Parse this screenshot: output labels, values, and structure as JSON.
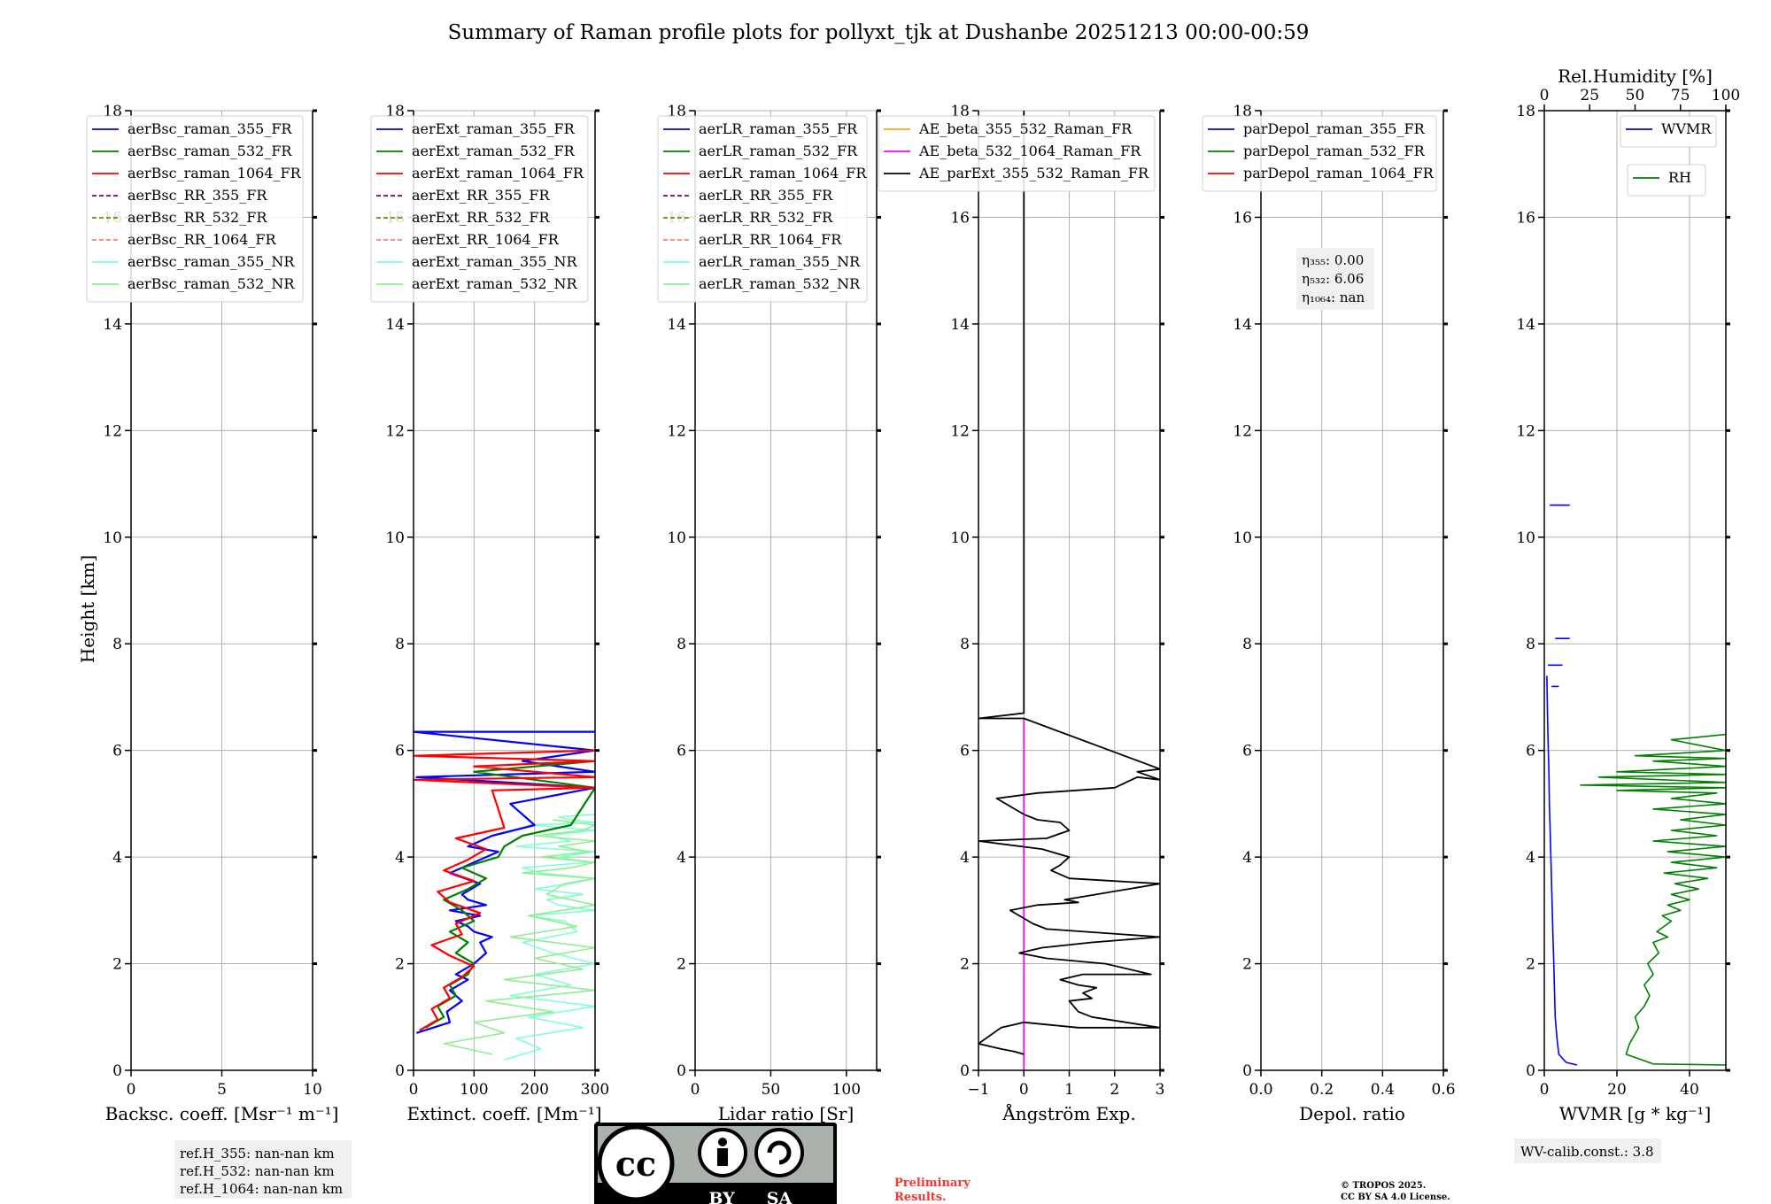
{
  "title": "Summary of Raman profile plots for pollyxt_tjk at Dushanbe 20251213 00:00-00:59",
  "ylabel": "Height [km]",
  "ylim": [
    0,
    18
  ],
  "yticks": [
    "0",
    "2",
    "4",
    "6",
    "8",
    "10",
    "12",
    "14",
    "16",
    "18"
  ],
  "chart_data": [
    {
      "type": "line",
      "id": "bsc",
      "xlabel": "Backsc. coeff. [Msr⁻¹ m⁻¹]",
      "xlim": [
        0,
        10
      ],
      "xticks": [
        0,
        5,
        10
      ],
      "xtick_labels": [
        "0",
        "5",
        "10"
      ],
      "legend": [
        {
          "name": "aerBsc_raman_355_FR",
          "color": "#0000ff",
          "dash": false
        },
        {
          "name": "aerBsc_raman_532_FR",
          "color": "#008000",
          "dash": false
        },
        {
          "name": "aerBsc_raman_1064_FR",
          "color": "#ff0000",
          "dash": false
        },
        {
          "name": "aerBsc_RR_355_FR",
          "color": "#800080",
          "dash": true
        },
        {
          "name": "aerBsc_RR_532_FR",
          "color": "#808000",
          "dash": true
        },
        {
          "name": "aerBsc_RR_1064_FR",
          "color": "#fa8072",
          "dash": true
        },
        {
          "name": "aerBsc_raman_355_NR",
          "color": "#7fffd4",
          "dash": false
        },
        {
          "name": "aerBsc_raman_532_NR",
          "color": "#90ee90",
          "dash": false
        }
      ],
      "series": []
    },
    {
      "type": "line",
      "id": "ext",
      "xlabel": "Extinct. coeff. [Mm⁻¹]",
      "xlim": [
        0,
        300
      ],
      "xticks": [
        0,
        100,
        200,
        300
      ],
      "xtick_labels": [
        "0",
        "100",
        "200",
        "300"
      ],
      "legend": [
        {
          "name": "aerExt_raman_355_FR",
          "color": "#0000ff",
          "dash": false
        },
        {
          "name": "aerExt_raman_532_FR",
          "color": "#008000",
          "dash": false
        },
        {
          "name": "aerExt_raman_1064_FR",
          "color": "#ff0000",
          "dash": false
        },
        {
          "name": "aerExt_RR_355_FR",
          "color": "#800080",
          "dash": true
        },
        {
          "name": "aerExt_RR_532_FR",
          "color": "#808000",
          "dash": true
        },
        {
          "name": "aerExt_RR_1064_FR",
          "color": "#fa8072",
          "dash": true
        },
        {
          "name": "aerExt_raman_355_NR",
          "color": "#7fffd4",
          "dash": false
        },
        {
          "name": "aerExt_raman_532_NR",
          "color": "#90ee90",
          "dash": false
        }
      ],
      "series": [
        {
          "name": "aerExt_raman_355_NR",
          "color": "#7fffd4",
          "width": 1.6,
          "x": [
            150,
            210,
            170,
            280,
            190,
            300,
            160,
            260,
            200,
            300,
            230,
            180,
            270,
            250,
            190,
            300,
            240,
            220,
            280,
            200,
            260,
            300,
            210,
            180,
            290,
            240,
            300,
            170,
            260,
            220,
            300,
            250,
            190,
            300,
            260,
            240,
            300
          ],
          "y": [
            0.2,
            0.4,
            0.6,
            0.8,
            1.0,
            1.2,
            1.4,
            1.6,
            1.8,
            2.0,
            2.2,
            2.4,
            2.6,
            2.8,
            2.9,
            3.0,
            3.1,
            3.2,
            3.3,
            3.4,
            3.5,
            3.6,
            3.7,
            3.8,
            3.9,
            4.0,
            4.1,
            4.2,
            4.3,
            4.4,
            4.5,
            4.55,
            4.6,
            4.65,
            4.7,
            4.75,
            4.8
          ]
        },
        {
          "name": "aerExt_raman_532_NR",
          "color": "#90ee90",
          "width": 1.6,
          "x": [
            130,
            50,
            150,
            100,
            230,
            120,
            300,
            150,
            280,
            200,
            300,
            160,
            270,
            190,
            300,
            220,
            250,
            300,
            180,
            260,
            300,
            210,
            290,
            240,
            300,
            200,
            280,
            300,
            230
          ],
          "y": [
            0.3,
            0.5,
            0.7,
            0.9,
            1.1,
            1.3,
            1.5,
            1.7,
            1.9,
            2.1,
            2.3,
            2.5,
            2.7,
            2.9,
            3.1,
            3.3,
            3.5,
            3.6,
            3.7,
            3.8,
            3.9,
            4.0,
            4.1,
            4.2,
            4.3,
            4.4,
            4.5,
            4.6,
            4.7
          ]
        },
        {
          "name": "aerExt_raman_355_FR",
          "color": "#0000ff",
          "width": 2.2,
          "x": [
            5,
            60,
            55,
            80,
            60,
            90,
            70,
            100,
            120,
            110,
            130,
            100,
            90,
            70,
            110,
            60,
            120,
            90,
            80,
            110,
            60,
            100,
            140,
            90,
            130,
            200,
            160,
            300,
            5,
            300,
            180,
            300,
            0,
            300
          ],
          "y": [
            0.7,
            0.9,
            1.1,
            1.3,
            1.5,
            1.7,
            1.8,
            2.0,
            2.2,
            2.4,
            2.5,
            2.6,
            2.7,
            2.8,
            2.9,
            3.0,
            3.1,
            3.2,
            3.3,
            3.5,
            3.7,
            3.9,
            4.1,
            4.2,
            4.4,
            4.6,
            5.0,
            5.3,
            5.5,
            5.6,
            5.8,
            6.0,
            6.35,
            6.35
          ]
        },
        {
          "name": "aerExt_raman_532_FR",
          "color": "#008000",
          "width": 2.2,
          "x": [
            20,
            50,
            40,
            70,
            60,
            90,
            100,
            70,
            90,
            60,
            100,
            80,
            50,
            90,
            120,
            80,
            140,
            150,
            180,
            260,
            300,
            100,
            300
          ],
          "y": [
            0.8,
            1.0,
            1.2,
            1.4,
            1.6,
            1.8,
            2.0,
            2.2,
            2.4,
            2.6,
            2.8,
            3.0,
            3.2,
            3.4,
            3.6,
            3.8,
            4.0,
            4.2,
            4.4,
            4.6,
            5.3,
            5.6,
            5.8
          ]
        },
        {
          "name": "aerExt_raman_1064_FR",
          "color": "#ff0000",
          "width": 2.2,
          "x": [
            10,
            40,
            30,
            60,
            50,
            80,
            100,
            60,
            30,
            80,
            70,
            110,
            60,
            40,
            100,
            50,
            90,
            120,
            70,
            150,
            130,
            300,
            0,
            300,
            100,
            300,
            0,
            300
          ],
          "y": [
            0.75,
            0.95,
            1.15,
            1.35,
            1.55,
            1.75,
            1.95,
            2.15,
            2.35,
            2.55,
            2.75,
            2.95,
            3.15,
            3.35,
            3.55,
            3.75,
            3.95,
            4.15,
            4.35,
            4.55,
            5.25,
            5.3,
            5.45,
            5.5,
            5.7,
            5.8,
            5.9,
            6.0
          ]
        }
      ]
    },
    {
      "type": "line",
      "id": "lr",
      "xlabel": "Lidar ratio [Sr]",
      "xlim": [
        0,
        120
      ],
      "xticks": [
        0,
        50,
        100
      ],
      "xtick_labels": [
        "0",
        "50",
        "100"
      ],
      "legend": [
        {
          "name": "aerLR_raman_355_FR",
          "color": "#0000ff",
          "dash": false
        },
        {
          "name": "aerLR_raman_532_FR",
          "color": "#008000",
          "dash": false
        },
        {
          "name": "aerLR_raman_1064_FR",
          "color": "#ff0000",
          "dash": false
        },
        {
          "name": "aerLR_RR_355_FR",
          "color": "#800080",
          "dash": true
        },
        {
          "name": "aerLR_RR_532_FR",
          "color": "#808000",
          "dash": true
        },
        {
          "name": "aerLR_RR_1064_FR",
          "color": "#fa8072",
          "dash": true
        },
        {
          "name": "aerLR_raman_355_NR",
          "color": "#7fffd4",
          "dash": false
        },
        {
          "name": "aerLR_raman_532_NR",
          "color": "#90ee90",
          "dash": false
        }
      ],
      "series": []
    },
    {
      "type": "line",
      "id": "ae",
      "xlabel": "Ångström Exp.",
      "xlim": [
        -1,
        3
      ],
      "xticks": [
        -1,
        0,
        1,
        2,
        3
      ],
      "xtick_labels": [
        "−1",
        "0",
        "1",
        "2",
        "3"
      ],
      "legend": [
        {
          "name": "AE_beta_355_532_Raman_FR",
          "color": "#ffa500",
          "dash": false
        },
        {
          "name": "AE_beta_532_1064_Raman_FR",
          "color": "#ff00ff",
          "dash": false
        },
        {
          "name": "AE_parExt_355_532_Raman_FR",
          "color": "#000000",
          "dash": false
        }
      ],
      "series": [
        {
          "name": "AE_beta_532_1064_Raman_FR",
          "color": "#ff00ff",
          "width": 1.8,
          "x": [
            0,
            0
          ],
          "y": [
            0,
            6.6
          ]
        },
        {
          "name": "AE_parExt_355_532_Raman_FR",
          "color": "#000000",
          "width": 1.8,
          "x": [
            0,
            -0.2,
            -0.5,
            -1,
            -0.5,
            0,
            1.2,
            3,
            1.5,
            1.2,
            1.0,
            1.5,
            1.3,
            1.6,
            1.2,
            1.0,
            0.8,
            1.3,
            2.8,
            1.8,
            0.5,
            -0.1,
            0.4,
            1.5,
            3.0,
            0.5,
            0.2,
            -0.3,
            0.3,
            1.2,
            0.9,
            3.0,
            1.0,
            0.6,
            0.8,
            1.0,
            0.4,
            -1,
            0.5,
            1.0,
            0.8,
            0.3,
            0,
            -0.6,
            0.3,
            2.0,
            2.5,
            3.0,
            2.5,
            3.0,
            0,
            -1,
            0,
            0
          ],
          "y": [
            0.3,
            0.35,
            0.4,
            0.5,
            0.8,
            0.9,
            0.8,
            0.8,
            1.0,
            1.1,
            1.3,
            1.35,
            1.45,
            1.55,
            1.6,
            1.65,
            1.7,
            1.8,
            1.8,
            2.0,
            2.1,
            2.2,
            2.3,
            2.4,
            2.5,
            2.65,
            2.75,
            3.0,
            3.1,
            3.15,
            3.2,
            3.5,
            3.6,
            3.75,
            3.85,
            4.0,
            4.15,
            4.3,
            4.35,
            4.5,
            4.65,
            4.7,
            4.8,
            5.1,
            5.2,
            5.3,
            5.5,
            5.45,
            5.6,
            5.65,
            6.6,
            6.6,
            6.7,
            18
          ]
        }
      ]
    },
    {
      "type": "line",
      "id": "depol",
      "xlabel": "Depol. ratio",
      "xlim": [
        0,
        0.6
      ],
      "xticks": [
        0,
        0.2,
        0.4,
        0.6
      ],
      "xtick_labels": [
        "0.0",
        "0.2",
        "0.4",
        "0.6"
      ],
      "legend": [
        {
          "name": "parDepol_raman_355_FR",
          "color": "#0000ff",
          "dash": false
        },
        {
          "name": "parDepol_raman_532_FR",
          "color": "#008000",
          "dash": false
        },
        {
          "name": "parDepol_raman_1064_FR",
          "color": "#ff0000",
          "dash": false
        }
      ],
      "series": []
    },
    {
      "type": "line",
      "id": "wv",
      "xlabel": "WVMR [g * kg⁻¹]",
      "xlim": [
        0,
        50
      ],
      "xticks": [
        0,
        20,
        40
      ],
      "xtick_labels": [
        "0",
        "20",
        "40"
      ],
      "x2label": "Rel.Humidity [%]",
      "x2lim": [
        0,
        100
      ],
      "x2ticks": [
        0,
        25,
        50,
        75,
        100
      ],
      "x2tick_labels": [
        "0",
        "25",
        "50",
        "75",
        "100"
      ],
      "legend": [
        {
          "name": "WVMR",
          "color": "#0000ff",
          "dash": false
        }
      ],
      "legend2": [
        {
          "name": "RH",
          "color": "#008000",
          "dash": false
        }
      ],
      "series": [
        {
          "name": "WVMR",
          "color": "#0000ff",
          "width": 1.6,
          "x": [
            9,
            6,
            4,
            3.5,
            3,
            2.8,
            2.6,
            2.4,
            2.2,
            2.0,
            1.8,
            1.6,
            1.4,
            1.3,
            1.2,
            1.1,
            1.0,
            0.9,
            0.8,
            0.7
          ],
          "y": [
            0.1,
            0.15,
            0.3,
            0.6,
            1.0,
            1.5,
            2.0,
            2.5,
            3.0,
            3.5,
            4.0,
            4.5,
            5.0,
            5.5,
            5.8,
            6.0,
            6.3,
            6.6,
            7.0,
            7.4
          ]
        },
        {
          "name": "WVMR_seg1",
          "color": "#0000ff",
          "width": 1.6,
          "x": [
            1.5,
            7
          ],
          "y": [
            10.6,
            10.6
          ]
        },
        {
          "name": "WVMR_seg2",
          "color": "#0000ff",
          "width": 1.6,
          "x": [
            3,
            7
          ],
          "y": [
            8.1,
            8.1
          ]
        },
        {
          "name": "WVMR_seg3",
          "color": "#0000ff",
          "width": 1.6,
          "x": [
            1,
            5
          ],
          "y": [
            7.6,
            7.6
          ]
        },
        {
          "name": "WVMR_seg4",
          "color": "#0000ff",
          "width": 1.6,
          "x": [
            2,
            4
          ],
          "y": [
            7.2,
            7.2
          ]
        },
        {
          "name": "RH",
          "color": "#008000",
          "width": 1.6,
          "axis": "x2",
          "x": [
            100,
            60,
            45,
            47,
            52,
            50,
            55,
            58,
            55,
            60,
            57,
            63,
            60,
            68,
            62,
            70,
            65,
            75,
            68,
            80,
            70,
            85,
            72,
            90,
            66,
            95,
            70,
            100,
            68,
            100,
            60,
            95,
            70,
            100,
            75,
            100,
            60,
            100,
            70,
            95,
            40,
            100,
            20,
            100,
            30,
            100,
            40,
            100,
            60,
            100,
            50,
            100,
            70,
            100
          ],
          "y": [
            0.1,
            0.12,
            0.3,
            0.5,
            0.8,
            1.0,
            1.2,
            1.4,
            1.6,
            1.8,
            2.0,
            2.2,
            2.4,
            2.5,
            2.6,
            2.8,
            2.9,
            3.0,
            3.1,
            3.2,
            3.3,
            3.4,
            3.5,
            3.6,
            3.7,
            3.8,
            3.9,
            4.0,
            4.1,
            4.2,
            4.3,
            4.4,
            4.5,
            4.6,
            4.7,
            4.8,
            4.9,
            5.0,
            5.1,
            5.2,
            5.25,
            5.3,
            5.35,
            5.4,
            5.5,
            5.55,
            5.6,
            5.7,
            5.8,
            5.85,
            5.9,
            6.0,
            6.2,
            6.3
          ]
        }
      ]
    }
  ],
  "annotations": {
    "eta_355": "η₃₅₅: 0.00",
    "eta_532": "η₅₃₂: 6.06",
    "eta_1064": "η₁₀₆₄: nan",
    "refh_355": "ref.H_355: nan-nan km",
    "refh_532": "ref.H_532: nan-nan km",
    "refh_1064": "ref.H_1064: nan-nan km",
    "wv_calib": "WV-calib.const.: 3.8",
    "preliminary_1": "Preliminary",
    "preliminary_2": "Results.",
    "copyright_1": "© TROPOS 2025.",
    "copyright_2": "CC BY SA 4.0 License."
  },
  "license_badge": {
    "cc": "cc",
    "by": "BY",
    "sa": "SA"
  }
}
